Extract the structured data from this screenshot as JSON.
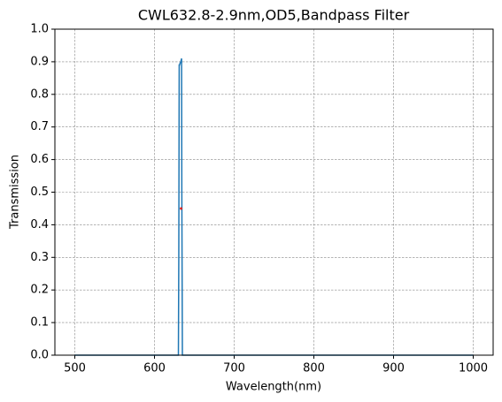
{
  "chart_data": {
    "type": "line",
    "title": "CWL632.8-2.9nm,OD5,Bandpass Filter",
    "x_label": "Wavelength(nm)",
    "y_label": "Transmission",
    "series": [
      {
        "color": "#1f77b4",
        "x": [
          500,
          630,
          630.5,
          631,
          631.5,
          632,
          633,
          634,
          634.3,
          635,
          1000
        ],
        "values": [
          0,
          0,
          0.3,
          0.89,
          0.89,
          0.895,
          0.9,
          0.91,
          0.5,
          0,
          0
        ]
      }
    ],
    "points": [
      {
        "x": 633.4,
        "y": 0.45,
        "color": "#d62728"
      }
    ],
    "xlim": [
      475,
      1025
    ],
    "ylim": [
      0,
      1
    ],
    "xticks": [
      500,
      600,
      700,
      800,
      900,
      1000
    ],
    "yticks": [
      {
        "value": 0,
        "label": "0.0"
      },
      0.1,
      0.2,
      0.3,
      0.4,
      0.5,
      0.6,
      0.7,
      0.8,
      0.9,
      {
        "value": 1,
        "label": "1.0"
      }
    ],
    "grid": true
  }
}
